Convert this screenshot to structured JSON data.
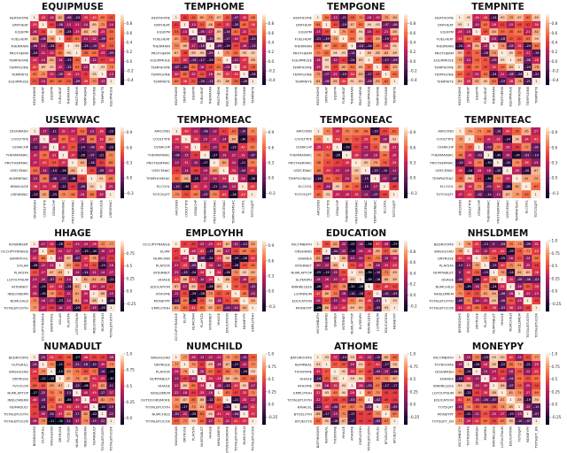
{
  "colormap": [
    "#03051a",
    "#2b0b3a",
    "#5c1a5a",
    "#8e1d5b",
    "#c0205a",
    "#e83f3f",
    "#f47145",
    "#f6a77b",
    "#faebdd"
  ],
  "chart_data": [
    {
      "type": "heatmap",
      "title": "EQUIPMUSE",
      "labels": [
        "HEATHOME",
        "DNTHEAT",
        "EQUIPM",
        "FUELHEAT",
        "THERMAIN",
        "PROTHERM",
        "TEMPHOME",
        "TEMPGONE",
        "TEMPNITE",
        "EQUIPMUSE"
      ],
      "colorbar": {
        "ticks": [
          0.8,
          0.6,
          0.4,
          0.2,
          0.0,
          -0.2,
          -0.4
        ],
        "range": [
          -0.5,
          1.0
        ]
      },
      "seed": 11
    },
    {
      "type": "heatmap",
      "title": "TEMPHOME",
      "labels": [
        "HEATHOME",
        "DNTHEAT",
        "EQUIPM",
        "FUELHEAT",
        "THERMAIN",
        "PROTHERM",
        "EQUIPMUSE",
        "TEMPHOME",
        "TEMPGONE",
        "TEMPNITE"
      ],
      "colorbar": {
        "ticks": [
          0.8,
          0.6,
          0.4,
          0.2,
          0.0,
          -0.2,
          -0.4
        ],
        "range": [
          -0.5,
          1.0
        ]
      },
      "seed": 23
    },
    {
      "type": "heatmap",
      "title": "TEMPGONE",
      "labels": [
        "HEATHOME",
        "DNTHEAT",
        "EQUIPM",
        "FUELHEAT",
        "THERMAIN",
        "PROTHERM",
        "EQUIPMUSE",
        "TEMPHOME",
        "TEMPGONE",
        "TEMPNITE"
      ],
      "colorbar": {
        "ticks": [
          0.8,
          0.6,
          0.4,
          0.2,
          0.0,
          -0.2,
          -0.4
        ],
        "range": [
          -0.5,
          1.0
        ]
      },
      "seed": 37
    },
    {
      "type": "heatmap",
      "title": "TEMPNITE",
      "labels": [
        "HEATHOME",
        "DNTHEAT",
        "EQUIPM",
        "FUELHEAT",
        "THERMAIN",
        "PROTHERM",
        "EQUIPMUSE",
        "TEMPHOME",
        "TEMPGONE",
        "TEMPNITE"
      ],
      "colorbar": {
        "ticks": [
          0.8,
          0.6,
          0.4,
          0.2,
          0.0,
          -0.2,
          -0.4
        ],
        "range": [
          -0.5,
          1.0
        ]
      },
      "seed": 41
    },
    {
      "type": "heatmap",
      "title": "USEWWAC",
      "labels": [
        "DISHWASH",
        "COOLTYPE",
        "CENACHP",
        "THERMAINAC",
        "PROTHERMAC",
        "USECENAC",
        "NUMBERAC",
        "WWACAGE",
        "USEWWAC"
      ],
      "colorbar": {
        "ticks": [
          0.9,
          0.6,
          0.3,
          0.0,
          -0.3
        ],
        "range": [
          -0.4,
          1.0
        ]
      },
      "seed": 53
    },
    {
      "type": "heatmap",
      "title": "TEMPHOMEAC",
      "labels": [
        "AIRCOND",
        "COOLTYPE",
        "CENACHP",
        "THERMAINAC",
        "PROTHERMAC",
        "USECENAC",
        "TEMPHOMEAC",
        "ELCOOL",
        "TOTCSQFT"
      ],
      "colorbar": {
        "ticks": [
          0.9,
          0.6,
          0.3,
          0.0,
          -0.3
        ],
        "range": [
          -0.4,
          1.0
        ]
      },
      "seed": 67
    },
    {
      "type": "heatmap",
      "title": "TEMPGONEAC",
      "labels": [
        "AIRCOND",
        "COOLTYPE",
        "CENACHP",
        "THERMAINAC",
        "PROTHERMAC",
        "USECENAC",
        "TEMPGONEAC",
        "ELCOOL",
        "TOTCSQFT"
      ],
      "colorbar": {
        "ticks": [
          0.9,
          0.6,
          0.3,
          0.0,
          -0.3
        ],
        "range": [
          -0.4,
          1.0
        ]
      },
      "seed": 71
    },
    {
      "type": "heatmap",
      "title": "TEMPNITEAC",
      "labels": [
        "AIRCOND",
        "COOLTYPE",
        "CENACHP",
        "THERMAINAC",
        "PROTHERMAC",
        "USECENAC",
        "TEMPNITEAC",
        "ELCOOL",
        "TOTCSQFT"
      ],
      "colorbar": {
        "ticks": [
          0.9,
          0.6,
          0.3,
          0.0,
          -0.3
        ],
        "range": [
          -0.4,
          1.0
        ]
      },
      "seed": 83
    },
    {
      "type": "heatmap",
      "title": "HHAGE",
      "labels": [
        "KOWNRENT",
        "OCCUPYYRANGE",
        "BARRPOOL",
        "SOLAR",
        "PLAYSTA",
        "LGTOUTNUM",
        "INTERNET",
        "INDLOWERN",
        "NUMCHILD",
        "TOTALBTUOTH"
      ],
      "colorbar": {
        "ticks": [
          0.75,
          0.5,
          0.25,
          0.0,
          -0.25
        ],
        "range": [
          -0.4,
          1.0
        ]
      },
      "seed": 97
    },
    {
      "type": "heatmap",
      "title": "EMPLOYHH",
      "labels": [
        "OCCUPYYRANGE",
        "ELPAY",
        "NUMCFAN",
        "PLAYSTA",
        "INTERNET",
        "HHAGE",
        "EDUCATION",
        "ATHOME",
        "MONEYPY",
        "EMPLOYHH"
      ],
      "colorbar": {
        "ticks": [
          0.9,
          0.6,
          0.3,
          0.0,
          -0.3
        ],
        "range": [
          -0.4,
          1.0
        ]
      },
      "seed": 101
    },
    {
      "type": "heatmap",
      "title": "EDUCATION",
      "labels": [
        "INCOMBATH",
        "ONSHAND",
        "ENAREA",
        "INTERNET",
        "NUMLAPTOP",
        "ELPERIPH",
        "INWIRELESS",
        "LGTINNUM",
        "EDUCATION",
        "MONEYPY"
      ],
      "colorbar": {
        "ticks": [
          0.8,
          0.6,
          0.4,
          0.2,
          0.0,
          -0.2
        ],
        "range": [
          -0.3,
          1.0
        ]
      },
      "seed": 113
    },
    {
      "type": "heatmap",
      "title": "NHSLDMEM",
      "labels": [
        "BEDROOMS",
        "WASHLOAD",
        "DRYRUSE",
        "PLAYSTA",
        "NUMTABLET",
        "HHAGE",
        "NUMCHILD",
        "NHSLDMEM",
        "TOTALBTUOTH",
        "TOTALBTUCOK"
      ],
      "colorbar": {
        "ticks": [
          1.0,
          0.75,
          0.5,
          0.25,
          0.0,
          -0.25
        ],
        "range": [
          -0.4,
          1.0
        ]
      },
      "seed": 127
    },
    {
      "type": "heatmap",
      "title": "NUMADULT",
      "labels": [
        "BEDROOMS",
        "OUTGRILL",
        "WASHLOAD",
        "DRYRUSE",
        "TVCOLOR",
        "NUMLAPTOP",
        "INDLOWERN",
        "NUMADULT",
        "TOTALBTUOTH",
        "TOTALBTUCOK"
      ],
      "colorbar": {
        "ticks": [
          1.0,
          0.75,
          0.5,
          0.25,
          0.0
        ],
        "range": [
          -0.1,
          1.0
        ]
      },
      "seed": 131
    },
    {
      "type": "heatmap",
      "title": "NUMCHILD",
      "labels": [
        "WASHLOAD",
        "DRYRUSE",
        "PLAYSTA",
        "NUMTABLET",
        "HHAGE",
        "NHSLDMEM",
        "OUTDOORSMOKE",
        "TOTALBTUOTH",
        "NUMCHILD",
        "TOTALBTUCOK"
      ],
      "colorbar": {
        "ticks": [
          1.0,
          0.75,
          0.5,
          0.25,
          0.0,
          -0.25
        ],
        "range": [
          -0.4,
          1.0
        ]
      },
      "seed": 149
    },
    {
      "type": "heatmap",
      "title": "ATHOME",
      "labels": [
        "BATHROOMS",
        "NUMMEAL",
        "TVONTIME",
        "HHAGE",
        "ATHOME",
        "EMPLOYHH",
        "TOTALBTUOTH",
        "KAVALEL",
        "BTUELOTH",
        "BTUELTVS"
      ],
      "colorbar": {
        "ticks": [
          1.0,
          0.75,
          0.5,
          0.25,
          0.0,
          -0.25
        ],
        "range": [
          -0.4,
          1.0
        ]
      },
      "seed": 151
    },
    {
      "type": "heatmap",
      "title": "MONEYPY",
      "labels": [
        "INCOMBATH",
        "TOTROOMS",
        "DISHWASH",
        "ENAREA",
        "INWIRELESS",
        "LGTOUTNUM",
        "EDUCATION",
        "TOTSQFT",
        "MONEYPY",
        "TOTSQFT_EN"
      ],
      "colorbar": {
        "ticks": [
          1.0,
          0.75,
          0.5,
          0.25,
          0.0,
          -0.25
        ],
        "range": [
          -0.4,
          1.0
        ]
      },
      "seed": 163
    }
  ]
}
